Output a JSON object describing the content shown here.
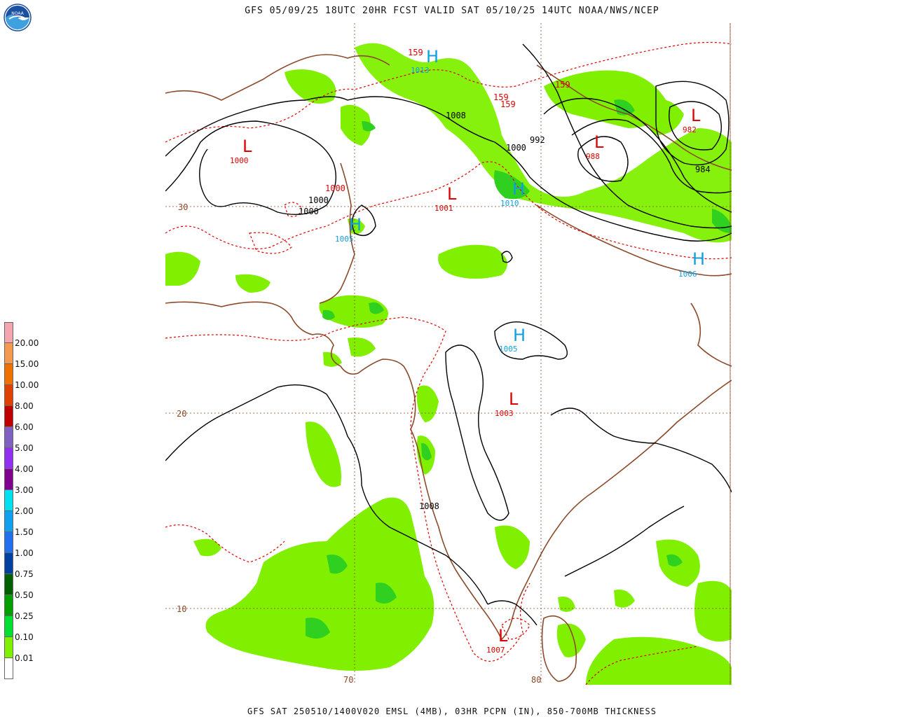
{
  "header": {
    "title": "GFS 05/09/25 18UTC 20HR FCST VALID SAT 05/10/25 14UTC NOAA/NWS/NCEP"
  },
  "footer": {
    "caption": "GFS SAT 250510/1400V020 EMSL (4MB), 03HR PCPN (IN), 850-700MB THICKNESS"
  },
  "logo": {
    "text": "NOAA"
  },
  "legend": {
    "labels": [
      "20.00",
      "15.00",
      "10.00",
      "8.00",
      "6.00",
      "5.00",
      "4.00",
      "3.00",
      "2.00",
      "1.50",
      "1.00",
      "0.75",
      "0.50",
      "0.25",
      "0.10",
      "0.01"
    ],
    "colors": [
      "#f5a5b0",
      "#f39a50",
      "#f07000",
      "#e04000",
      "#c00000",
      "#8060c0",
      "#9030f0",
      "#800090",
      "#00e0f0",
      "#10a0f0",
      "#2070f0",
      "#0040a0",
      "#006000",
      "#00a000",
      "#00e030",
      "#80f000",
      "#ffffff"
    ]
  },
  "map": {
    "lat_labels": [
      "30",
      "20",
      "10"
    ],
    "lon_labels": [
      "70",
      "80"
    ],
    "highs": [
      {
        "letter": "H",
        "value": "1013"
      },
      {
        "letter": "H",
        "value": "1010"
      },
      {
        "letter": "H",
        "value": "1005"
      },
      {
        "letter": "H",
        "value": "1005"
      },
      {
        "letter": "H",
        "value": "1006"
      }
    ],
    "lows": [
      {
        "letter": "L",
        "value": "1000"
      },
      {
        "letter": "L",
        "value": "1001"
      },
      {
        "letter": "L",
        "value": "988"
      },
      {
        "letter": "L",
        "value": "982"
      },
      {
        "letter": "L",
        "value": "1003"
      },
      {
        "letter": "L",
        "value": "1007"
      }
    ],
    "isobar_labels": [
      "1008",
      "1000",
      "992",
      "984",
      "1000",
      "1000",
      "1008"
    ],
    "thickness_labels": [
      "159",
      "159",
      "159",
      "159",
      "1000"
    ],
    "colors": {
      "isobar": "#000000",
      "thickness": "#e00000",
      "coast": "#8b4a2a",
      "grid": "#8b4a2a",
      "precip_light": "#80f000",
      "precip_mid": "#30d020",
      "precip_dark": "#10a030",
      "high": "#10a0e0",
      "low": "#e00000"
    }
  }
}
